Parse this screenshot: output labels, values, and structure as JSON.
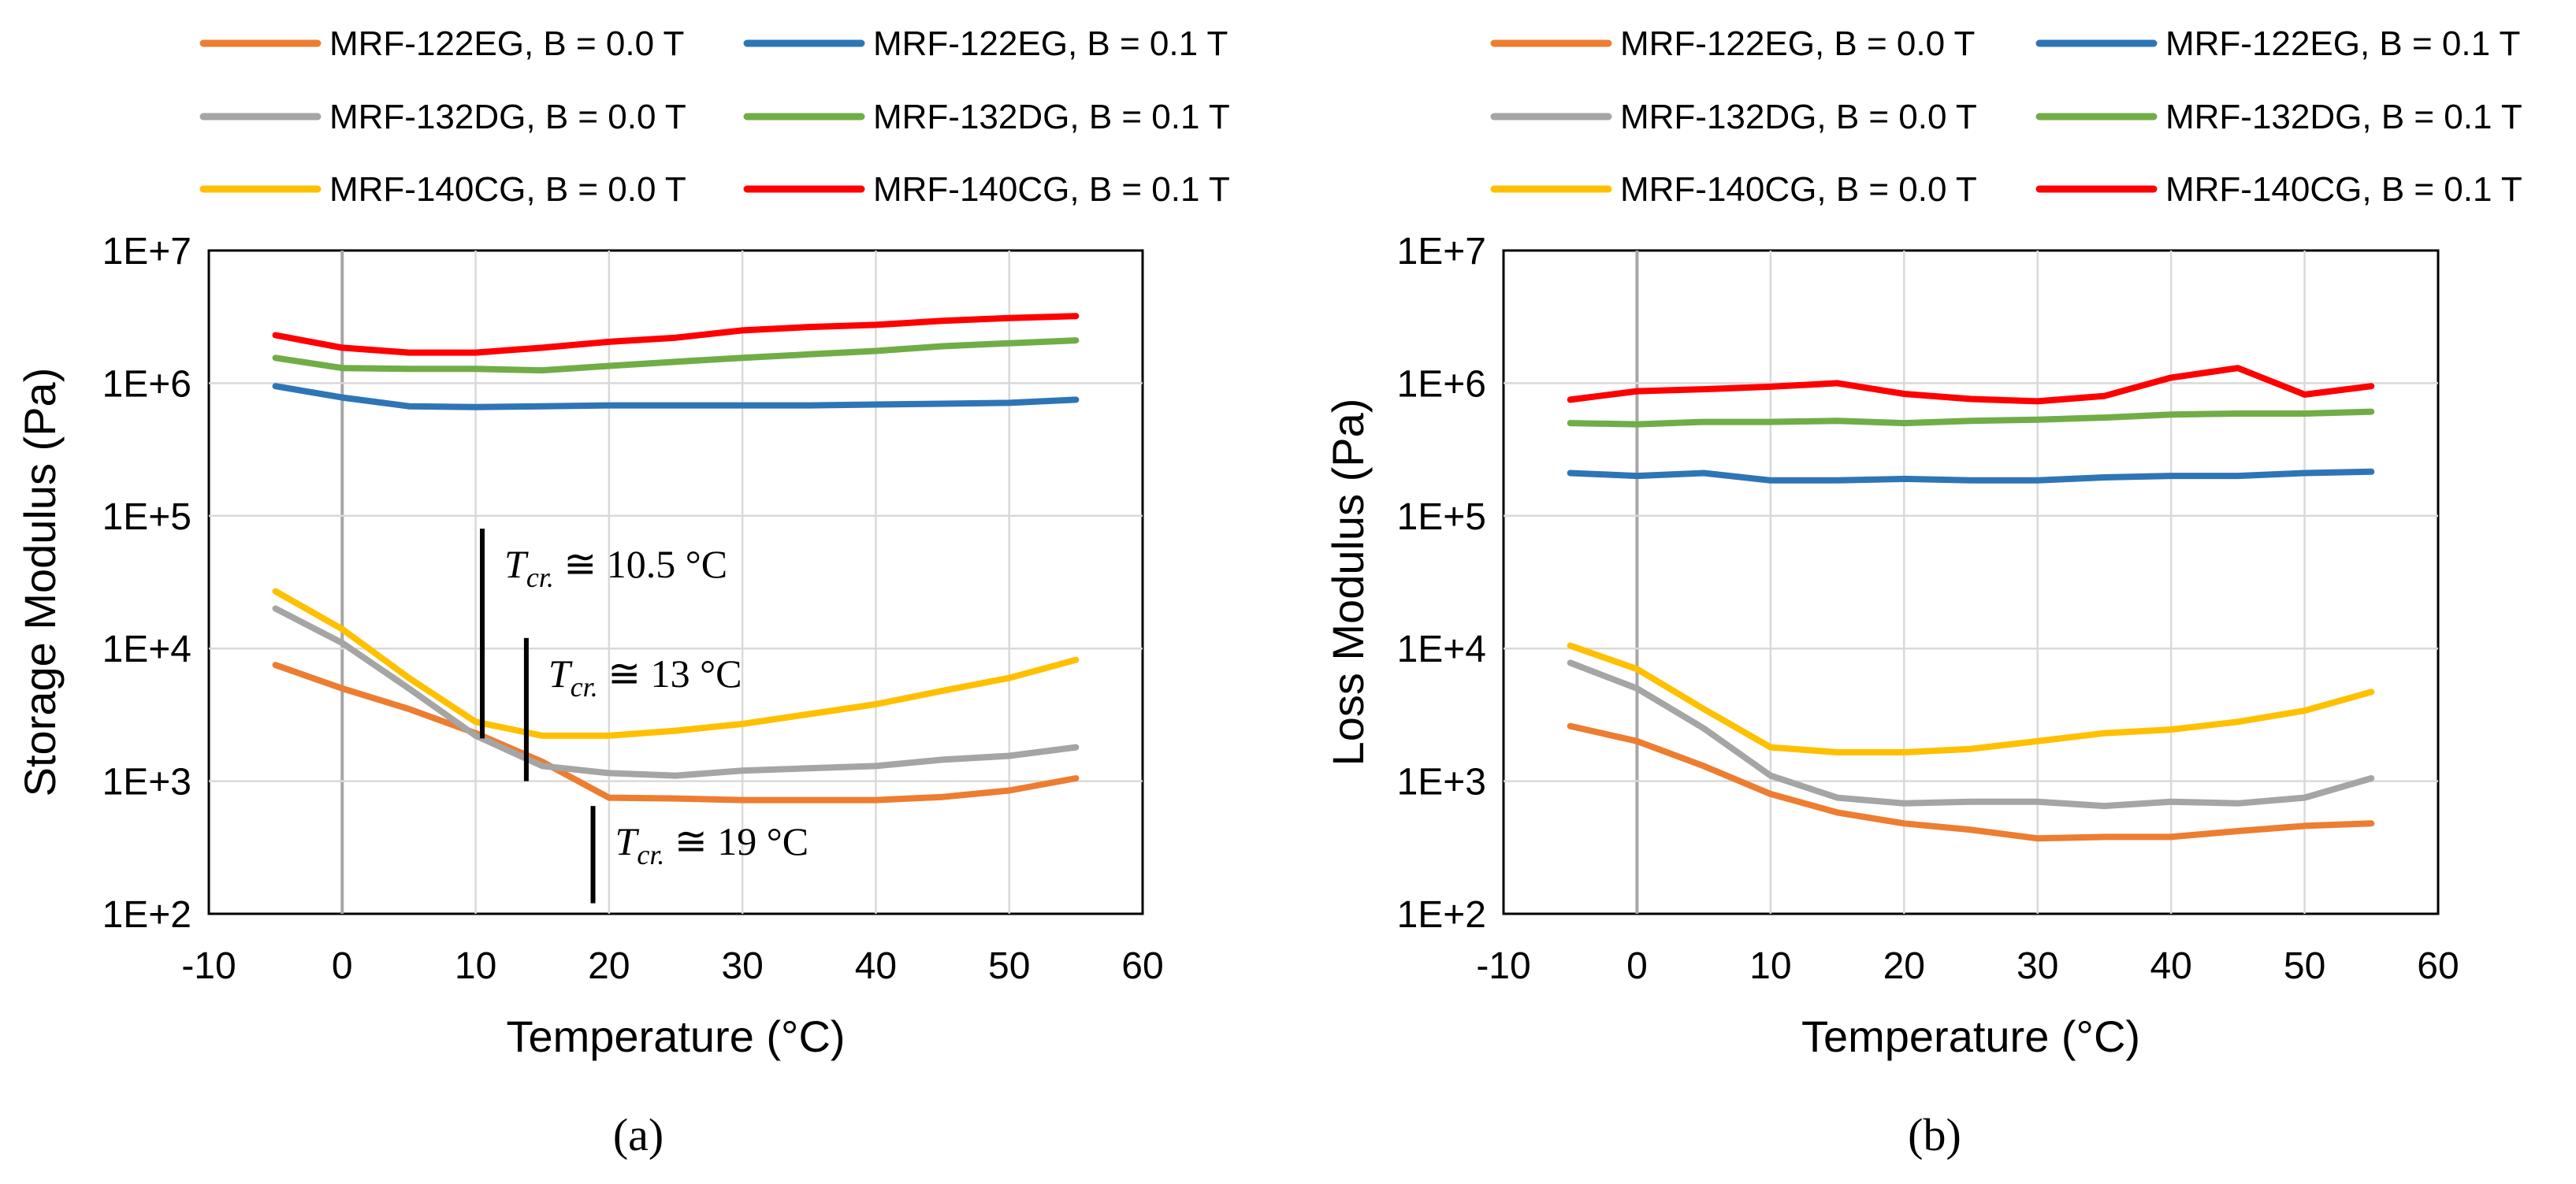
{
  "chart_data": [
    {
      "type": "line",
      "panel": "a",
      "caption": "(a)",
      "xlabel": "Temperature (°C)",
      "ylabel": "Storage Modulus (Pa)",
      "xlim": [
        -10,
        60
      ],
      "xticks": [
        -10,
        0,
        10,
        20,
        30,
        40,
        50,
        60
      ],
      "xtick_labels": [
        "-10",
        "0",
        "10",
        "20",
        "30",
        "40",
        "50",
        "60"
      ],
      "yscale": "log",
      "ylim": [
        100,
        10000000
      ],
      "yticks": [
        100,
        1000,
        10000,
        100000,
        1000000,
        10000000
      ],
      "ytick_labels": [
        "1E+2",
        "1E+3",
        "1E+4",
        "1E+5",
        "1E+6",
        "1E+7"
      ],
      "grid": true,
      "legend_position": "top",
      "series": [
        {
          "name": "MRF-122EG, B = 0.0 T",
          "color": "#ed7d31",
          "x": [
            -5,
            0,
            5,
            10,
            15,
            20,
            25,
            30,
            35,
            40,
            45,
            50,
            55
          ],
          "y": [
            7500,
            5000,
            3500,
            2300,
            1400,
            750,
            740,
            720,
            720,
            720,
            760,
            850,
            1050
          ]
        },
        {
          "name": "MRF-122EG, B = 0.1 T",
          "color": "#2e75b6",
          "x": [
            -5,
            0,
            5,
            10,
            15,
            20,
            25,
            30,
            35,
            40,
            45,
            50,
            55
          ],
          "y": [
            950000,
            780000,
            670000,
            660000,
            670000,
            680000,
            680000,
            680000,
            680000,
            690000,
            700000,
            710000,
            750000
          ]
        },
        {
          "name": "MRF-132DG, B = 0.0 T",
          "color": "#a5a5a5",
          "x": [
            -5,
            0,
            5,
            10,
            15,
            20,
            25,
            30,
            35,
            40,
            45,
            50,
            55
          ],
          "y": [
            20000,
            11000,
            5000,
            2200,
            1300,
            1150,
            1100,
            1200,
            1250,
            1300,
            1450,
            1550,
            1800
          ]
        },
        {
          "name": "MRF-132DG, B = 0.1 T",
          "color": "#70ad47",
          "x": [
            -5,
            0,
            5,
            10,
            15,
            20,
            25,
            30,
            35,
            40,
            45,
            50,
            55
          ],
          "y": [
            1550000,
            1300000,
            1280000,
            1280000,
            1250000,
            1350000,
            1450000,
            1550000,
            1650000,
            1750000,
            1900000,
            2000000,
            2100000
          ]
        },
        {
          "name": "MRF-140CG, B = 0.0 T",
          "color": "#ffc000",
          "x": [
            -5,
            0,
            5,
            10,
            15,
            20,
            25,
            30,
            35,
            40,
            45,
            50,
            55
          ],
          "y": [
            27000,
            14000,
            6000,
            2800,
            2200,
            2200,
            2400,
            2700,
            3200,
            3800,
            4800,
            6000,
            8200
          ]
        },
        {
          "name": "MRF-140CG, B = 0.1 T",
          "color": "#ff0000",
          "x": [
            -5,
            0,
            5,
            10,
            15,
            20,
            25,
            30,
            35,
            40,
            45,
            50,
            55
          ],
          "y": [
            2300000,
            1850000,
            1700000,
            1700000,
            1850000,
            2050000,
            2200000,
            2500000,
            2650000,
            2750000,
            2950000,
            3100000,
            3200000
          ]
        }
      ],
      "annotations": [
        {
          "text": "Tcr. ≅ 10.5 °C",
          "base": "T",
          "sub": "cr.",
          "rest": " ≅ 10.5 °C",
          "x": 10.5,
          "y_from": 2100,
          "y_to": 80000
        },
        {
          "text": "Tcr. ≅ 13 °C",
          "base": "T",
          "sub": "cr.",
          "rest": " ≅ 13 °C",
          "x": 13.8,
          "y_from": 1000,
          "y_to": 12000
        },
        {
          "text": "Tcr. ≅ 19 °C",
          "base": "T",
          "sub": "cr.",
          "rest": " ≅ 19 °C",
          "x": 18.8,
          "y_from": 120,
          "y_to": 650
        }
      ]
    },
    {
      "type": "line",
      "panel": "b",
      "caption": "(b)",
      "xlabel": "Temperature (°C)",
      "ylabel": "Loss Modulus (Pa)",
      "xlim": [
        -10,
        60
      ],
      "xticks": [
        -10,
        0,
        10,
        20,
        30,
        40,
        50,
        60
      ],
      "xtick_labels": [
        "-10",
        "0",
        "10",
        "20",
        "30",
        "40",
        "50",
        "60"
      ],
      "yscale": "log",
      "ylim": [
        100,
        10000000
      ],
      "yticks": [
        100,
        1000,
        10000,
        100000,
        1000000,
        10000000
      ],
      "ytick_labels": [
        "1E+2",
        "1E+3",
        "1E+4",
        "1E+5",
        "1E+6",
        "1E+7"
      ],
      "grid": true,
      "legend_position": "top",
      "series": [
        {
          "name": "MRF-122EG, B = 0.0 T",
          "color": "#ed7d31",
          "x": [
            -5,
            0,
            5,
            10,
            15,
            20,
            25,
            30,
            35,
            40,
            45,
            50,
            55
          ],
          "y": [
            2600,
            2000,
            1300,
            800,
            580,
            480,
            430,
            370,
            380,
            380,
            420,
            460,
            480
          ]
        },
        {
          "name": "MRF-122EG, B = 0.1 T",
          "color": "#2e75b6",
          "x": [
            -5,
            0,
            5,
            10,
            15,
            20,
            25,
            30,
            35,
            40,
            45,
            50,
            55
          ],
          "y": [
            210000,
            200000,
            210000,
            185000,
            185000,
            190000,
            185000,
            185000,
            195000,
            200000,
            200000,
            210000,
            215000
          ]
        },
        {
          "name": "MRF-132DG, B = 0.0 T",
          "color": "#a5a5a5",
          "x": [
            -5,
            0,
            5,
            10,
            15,
            20,
            25,
            30,
            35,
            40,
            45,
            50,
            55
          ],
          "y": [
            7800,
            5000,
            2500,
            1100,
            750,
            680,
            700,
            700,
            650,
            700,
            680,
            750,
            1050
          ]
        },
        {
          "name": "MRF-132DG, B = 0.1 T",
          "color": "#70ad47",
          "x": [
            -5,
            0,
            5,
            10,
            15,
            20,
            25,
            30,
            35,
            40,
            45,
            50,
            55
          ],
          "y": [
            500000,
            490000,
            510000,
            510000,
            520000,
            500000,
            520000,
            530000,
            550000,
            580000,
            590000,
            590000,
            610000
          ]
        },
        {
          "name": "MRF-140CG, B = 0.0 T",
          "color": "#ffc000",
          "x": [
            -5,
            0,
            5,
            10,
            15,
            20,
            25,
            30,
            35,
            40,
            45,
            50,
            55
          ],
          "y": [
            10500,
            7000,
            3500,
            1800,
            1650,
            1650,
            1750,
            2000,
            2300,
            2450,
            2800,
            3400,
            4700
          ]
        },
        {
          "name": "MRF-140CG, B = 0.1 T",
          "color": "#ff0000",
          "x": [
            -5,
            0,
            5,
            10,
            15,
            20,
            25,
            30,
            35,
            40,
            45,
            50,
            55
          ],
          "y": [
            750000,
            870000,
            900000,
            940000,
            1000000,
            830000,
            760000,
            730000,
            800000,
            1100000,
            1300000,
            820000,
            950000
          ]
        }
      ]
    }
  ]
}
